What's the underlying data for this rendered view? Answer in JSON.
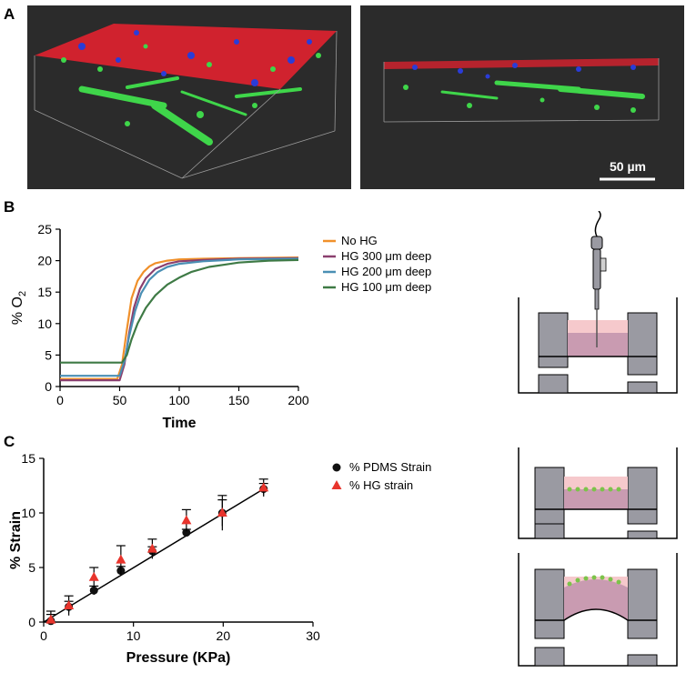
{
  "panels": {
    "a": {
      "letter": "A",
      "scale_bar_label": "50 µm"
    },
    "b": {
      "letter": "B"
    },
    "c": {
      "letter": "C"
    }
  },
  "colors": {
    "orange": "#f0902a",
    "purple": "#8b3f6e",
    "teal": "#4a8fb4",
    "green": "#3e7a45",
    "black": "#111111",
    "red": "#e8342c",
    "micro_bg": "#2b2b2b"
  },
  "chart_data": [
    {
      "type": "line",
      "title": "",
      "xlabel": "Time",
      "ylabel": "% O2",
      "xlim": [
        0,
        200
      ],
      "ylim": [
        0,
        25
      ],
      "xticks": [
        "0",
        "50",
        "100",
        "150",
        "200"
      ],
      "yticks": [
        "0",
        "5",
        "10",
        "15",
        "20",
        "25"
      ],
      "legend_position": "right",
      "series": [
        {
          "name": "No HG",
          "color": "#f0902a",
          "x": [
            0,
            48,
            52,
            56,
            60,
            65,
            70,
            75,
            80,
            90,
            100,
            120,
            150,
            200
          ],
          "values": [
            1.2,
            1.2,
            3.5,
            9,
            14,
            16.8,
            18.2,
            19.1,
            19.6,
            20.0,
            20.2,
            20.3,
            20.4,
            20.5
          ]
        },
        {
          "name": "HG 300 μm deep",
          "color": "#8b3f6e",
          "x": [
            0,
            50,
            54,
            58,
            62,
            67,
            72,
            80,
            90,
            100,
            120,
            150,
            200
          ],
          "values": [
            1.0,
            1.0,
            3.5,
            8.5,
            12.5,
            15.5,
            17.2,
            18.7,
            19.5,
            19.9,
            20.1,
            20.3,
            20.4
          ]
        },
        {
          "name": "HG 200 μm deep",
          "color": "#4a8fb4",
          "x": [
            0,
            50,
            54,
            58,
            63,
            68,
            75,
            82,
            90,
            100,
            120,
            150,
            200
          ],
          "values": [
            1.7,
            1.7,
            4,
            8,
            12,
            14.8,
            17,
            18.2,
            19.0,
            19.5,
            19.9,
            20.2,
            20.3
          ]
        },
        {
          "name": "HG 100 μm deep",
          "color": "#3e7a45",
          "x": [
            0,
            52,
            56,
            60,
            65,
            72,
            80,
            90,
            100,
            110,
            125,
            150,
            175,
            200
          ],
          "values": [
            3.8,
            3.8,
            5,
            7.5,
            10,
            12.5,
            14.5,
            16.2,
            17.3,
            18.2,
            19.0,
            19.7,
            20.0,
            20.1
          ]
        }
      ]
    },
    {
      "type": "scatter",
      "title": "",
      "xlabel": "Pressure (KPa)",
      "ylabel": "% Strain",
      "xlim": [
        0,
        30
      ],
      "ylim": [
        0,
        15
      ],
      "xticks": [
        "0",
        "10",
        "20",
        "30"
      ],
      "yticks": [
        "0",
        "5",
        "10",
        "15"
      ],
      "legend_position": "right",
      "fit_line": {
        "x": [
          0,
          24.5
        ],
        "y": [
          0,
          12.2
        ]
      },
      "series": [
        {
          "name": "% PDMS Strain",
          "color": "#111111",
          "marker": "circle",
          "x": [
            0.8,
            2.8,
            5.6,
            8.6,
            12.1,
            15.9,
            19.9,
            24.5
          ],
          "values": [
            0.1,
            1.4,
            2.9,
            4.7,
            6.5,
            8.2,
            10.0,
            12.2
          ],
          "err": [
            0.6,
            0.5,
            0.4,
            0.4,
            0.4,
            0.3,
            1.2,
            0.5
          ]
        },
        {
          "name": "% HG strain",
          "color": "#e8342c",
          "marker": "triangle",
          "x": [
            0.8,
            2.8,
            5.6,
            8.6,
            12.1,
            15.9,
            19.9,
            24.5
          ],
          "values": [
            0.2,
            1.5,
            4.1,
            5.7,
            6.7,
            9.3,
            10.0,
            12.3
          ],
          "err": [
            0.8,
            0.9,
            0.9,
            1.3,
            0.9,
            1.0,
            1.6,
            0.8
          ]
        }
      ]
    }
  ]
}
